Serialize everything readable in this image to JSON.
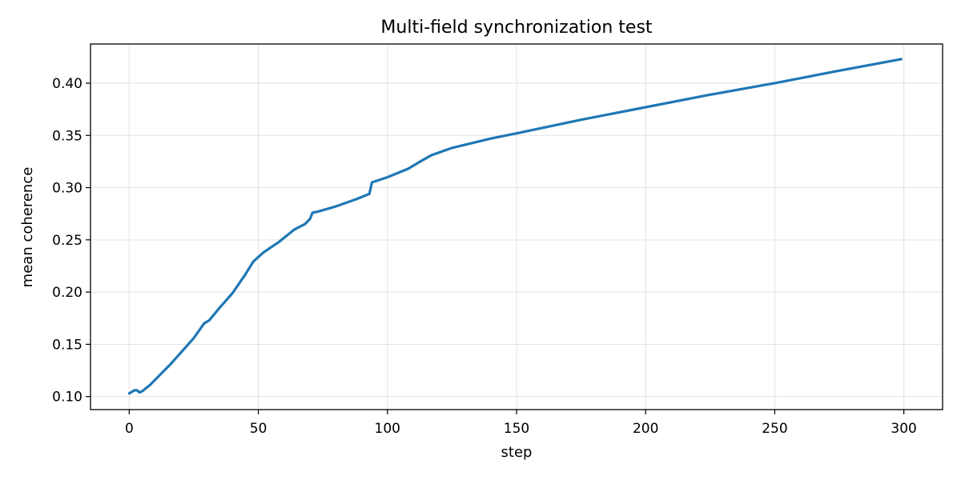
{
  "chart_data": {
    "type": "line",
    "title": "Multi-field synchronization test",
    "xlabel": "step",
    "ylabel": "mean coherence",
    "xlim": [
      -15,
      315
    ],
    "ylim": [
      0.0875,
      0.4375
    ],
    "xticks": [
      0,
      50,
      100,
      150,
      200,
      250,
      300
    ],
    "yticks": [
      0.1,
      0.15,
      0.2,
      0.25,
      0.3,
      0.35,
      0.4
    ],
    "ytick_labels": [
      "0.10",
      "0.15",
      "0.20",
      "0.25",
      "0.30",
      "0.35",
      "0.40"
    ],
    "grid": true,
    "legend": "none",
    "series": [
      {
        "color": "#1f77b4",
        "x": [
          0,
          2,
          3,
          4,
          5,
          8,
          12,
          16,
          20,
          25,
          29,
          31,
          35,
          40,
          45,
          48,
          52,
          58,
          64,
          68,
          70,
          71,
          73,
          80,
          88,
          93,
          94,
          100,
          108,
          112,
          117,
          125,
          140,
          150,
          175,
          200,
          225,
          250,
          275,
          299
        ],
        "y": [
          0.103,
          0.106,
          0.106,
          0.104,
          0.105,
          0.111,
          0.121,
          0.131,
          0.142,
          0.156,
          0.17,
          0.173,
          0.185,
          0.199,
          0.217,
          0.229,
          0.238,
          0.248,
          0.26,
          0.265,
          0.27,
          0.276,
          0.277,
          0.282,
          0.289,
          0.294,
          0.305,
          0.31,
          0.318,
          0.324,
          0.331,
          0.338,
          0.347,
          0.352,
          0.365,
          0.377,
          0.389,
          0.4,
          0.412,
          0.423
        ]
      }
    ]
  }
}
